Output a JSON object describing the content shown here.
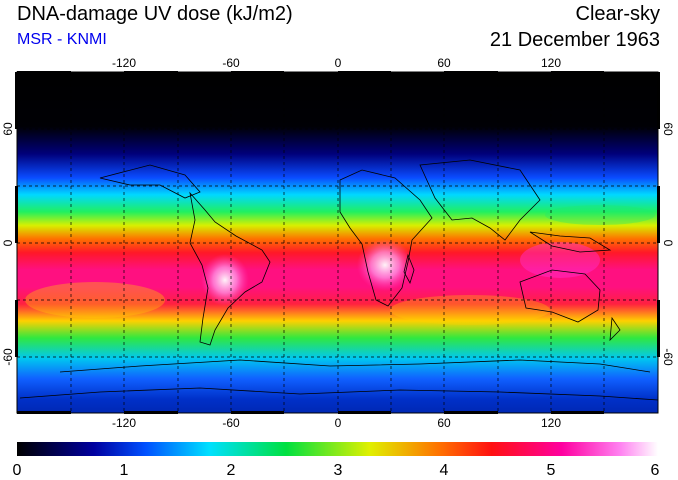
{
  "header": {
    "title": "DNA-damage UV dose (kJ/m2)",
    "subtitle": "MSR - KNMI",
    "sky_condition": "Clear-sky",
    "date": "21 December 1963"
  },
  "colors": {
    "subtitle": "#0000ee"
  },
  "map": {
    "lon_ticks": [
      "-120",
      "-60",
      "0",
      "60",
      "120"
    ],
    "lat_ticks": [
      "60",
      "0",
      "-60"
    ],
    "lon_range": [
      -180,
      180
    ],
    "lat_range": [
      -90,
      90
    ],
    "gridlines": "dashed every 30 degrees"
  },
  "colorbar": {
    "labels": [
      "0",
      "1",
      "2",
      "3",
      "4",
      "5",
      "6"
    ],
    "range": [
      0,
      6
    ]
  }
}
